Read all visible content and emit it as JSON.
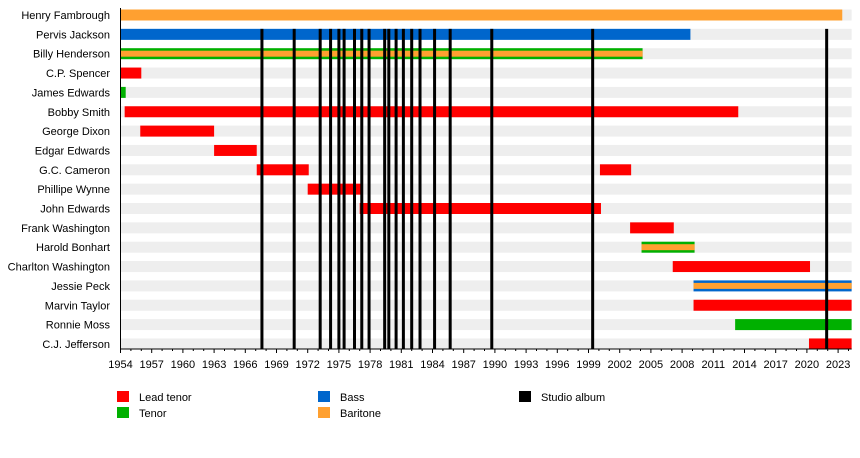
{
  "chart_data": {
    "type": "timeline",
    "xlim": [
      1954,
      2024.3
    ],
    "x_ticks": [
      1954,
      1957,
      1960,
      1963,
      1966,
      1969,
      1972,
      1975,
      1978,
      1981,
      1984,
      1987,
      1990,
      1993,
      1996,
      1999,
      2002,
      2005,
      2008,
      2011,
      2014,
      2017,
      2020,
      2023
    ],
    "grid": false,
    "legend_placement": "bottom",
    "colors": {
      "lead_tenor": "#ff0000",
      "tenor": "#00b000",
      "bass": "#0066cc",
      "baritone": "#ffa030",
      "studio_album": "#000000",
      "row_stripe": "#eeeeee"
    },
    "legend": [
      {
        "label": "Lead tenor",
        "color_key": "lead_tenor"
      },
      {
        "label": "Tenor",
        "color_key": "tenor"
      },
      {
        "label": "Bass",
        "color_key": "bass"
      },
      {
        "label": "Baritone",
        "color_key": "baritone"
      },
      {
        "label": "Studio album",
        "color_key": "studio_album"
      }
    ],
    "members": [
      {
        "name": "Henry Fambrough",
        "spans": [
          {
            "start": 1954,
            "end": 2023.4,
            "role": "baritone"
          }
        ]
      },
      {
        "name": "Pervis Jackson",
        "spans": [
          {
            "start": 1954,
            "end": 2008.8,
            "role": "bass"
          }
        ]
      },
      {
        "name": "Billy Henderson",
        "spans": [
          {
            "start": 1954,
            "end": 2004.2,
            "role": "baritone",
            "secondary": "tenor"
          }
        ]
      },
      {
        "name": "C.P. Spencer",
        "spans": [
          {
            "start": 1954,
            "end": 1956.0,
            "role": "lead_tenor"
          }
        ]
      },
      {
        "name": "James Edwards",
        "spans": [
          {
            "start": 1954,
            "end": 1954.5,
            "role": "tenor"
          }
        ]
      },
      {
        "name": "Bobby Smith",
        "spans": [
          {
            "start": 1954.4,
            "end": 2013.4,
            "role": "lead_tenor"
          }
        ]
      },
      {
        "name": "George Dixon",
        "spans": [
          {
            "start": 1955.9,
            "end": 1963.0,
            "role": "lead_tenor"
          }
        ]
      },
      {
        "name": "Edgar Edwards",
        "spans": [
          {
            "start": 1963.0,
            "end": 1967.1,
            "role": "lead_tenor"
          }
        ]
      },
      {
        "name": "G.C. Cameron",
        "spans": [
          {
            "start": 1967.1,
            "end": 1972.1,
            "role": "lead_tenor"
          },
          {
            "start": 2000.1,
            "end": 2003.1,
            "role": "lead_tenor"
          }
        ]
      },
      {
        "name": "Phillipe Wynne",
        "spans": [
          {
            "start": 1972.0,
            "end": 1977.1,
            "role": "lead_tenor"
          }
        ]
      },
      {
        "name": "John Edwards",
        "spans": [
          {
            "start": 1977.0,
            "end": 2000.2,
            "role": "lead_tenor"
          }
        ]
      },
      {
        "name": "Frank Washington",
        "spans": [
          {
            "start": 2003.0,
            "end": 2007.2,
            "role": "lead_tenor"
          }
        ]
      },
      {
        "name": "Harold Bonhart",
        "spans": [
          {
            "start": 2004.1,
            "end": 2009.2,
            "role": "baritone",
            "secondary": "tenor"
          }
        ]
      },
      {
        "name": "Charlton Washington",
        "spans": [
          {
            "start": 2007.1,
            "end": 2020.3,
            "role": "lead_tenor"
          }
        ]
      },
      {
        "name": "Jessie Peck",
        "spans": [
          {
            "start": 2009.1,
            "end": 2024.3,
            "role": "baritone",
            "secondary": "bass"
          }
        ]
      },
      {
        "name": "Marvin Taylor",
        "spans": [
          {
            "start": 2009.1,
            "end": 2024.3,
            "role": "lead_tenor"
          }
        ]
      },
      {
        "name": "Ronnie Moss",
        "spans": [
          {
            "start": 2013.1,
            "end": 2024.3,
            "role": "tenor"
          }
        ]
      },
      {
        "name": "C.J. Jefferson",
        "spans": [
          {
            "start": 2020.2,
            "end": 2024.3,
            "role": "lead_tenor"
          }
        ]
      }
    ],
    "studio_albums": [
      1967.6,
      1970.7,
      1973.2,
      1974.2,
      1975.0,
      1975.5,
      1976.5,
      1977.2,
      1977.9,
      1979.4,
      1979.8,
      1980.5,
      1981.2,
      1982.0,
      1982.8,
      1984.2,
      1985.7,
      1989.7,
      1999.4,
      2021.9
    ]
  }
}
